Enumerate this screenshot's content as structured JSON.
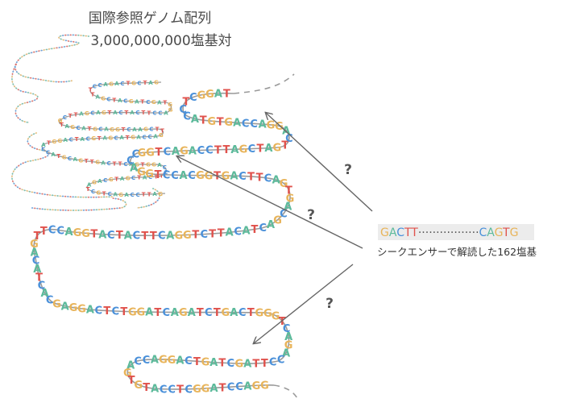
{
  "title_line1": "国際参照ゲノム配列",
  "title_line2": "3,000,000,000塩基対",
  "read_left": "GACTT",
  "read_dots": "·················",
  "read_right": "CAGTG",
  "read_caption": "シークエンサーで解読した162塩基",
  "question_mark": "?",
  "colors": {
    "A": "#5dba9b",
    "C": "#4a90d9",
    "G": "#e8b45a",
    "T": "#e0524c",
    "strand": "#888888",
    "arrow": "#666666",
    "read_bg": "#ececec"
  },
  "big_strand_sequence": "GGTCAGACCTTAGCTAGTCAGGACCAGTGTACCTCGGATCCAGGTCCACGGTGACTTCAGTGACGACTACATTCTGGACTTCATCATGGACCTTGACATCACGAGGACTCTGGATCAGATCTGACTG",
  "small_strand_sequence": "GATCGTCAGACCTTAGCTACGATCGATGGACCTTCATCATGACGATTCGTAGCATGCAGGTCAAGCTTGACCAGTACGATGCATCAGGTACCATGCAGTTGACTTCAGTGGACCTTCATCGATGCA"
}
